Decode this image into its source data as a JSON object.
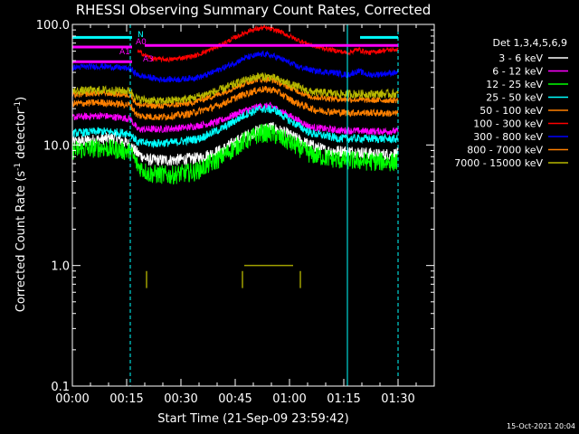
{
  "chart_data": {
    "type": "line",
    "title": "RHESSI Observing Summary Count Rates, Corrected",
    "xlabel": "Start Time (21-Sep-09 23:59:42)",
    "ylabel": "Corrected Count Rate (s⁻¹ detector⁻¹)",
    "ylabel_main": "Corrected Count Rate (s",
    "ylabel_sup1": "-1",
    "ylabel_mid": " detector",
    "ylabel_sup2": "-1",
    "ylabel_end": ")",
    "yscale": "log",
    "ylim": [
      0.1,
      100.0
    ],
    "xlim_minutes": [
      0,
      100
    ],
    "x_ticks": [
      {
        "value": 0,
        "label": "00:00"
      },
      {
        "value": 15,
        "label": "00:15"
      },
      {
        "value": 30,
        "label": "00:30"
      },
      {
        "value": 45,
        "label": "00:45"
      },
      {
        "value": 60,
        "label": "01:00"
      },
      {
        "value": 75,
        "label": "01:15"
      },
      {
        "value": 90,
        "label": "01:30"
      }
    ],
    "y_ticks": [
      {
        "value": 100.0,
        "label": "100.0"
      },
      {
        "value": 10.0,
        "label": "10.0"
      },
      {
        "value": 1.0,
        "label": "1.0"
      },
      {
        "value": 0.1,
        "label": "0.1"
      }
    ],
    "legend_title": "Det 1,3,4,5,6,9",
    "legend_position": "right",
    "series": [
      {
        "name": "3 - 6 keV",
        "color": "#ffffff",
        "noise": 0.05,
        "points": [
          [
            0,
            10.5
          ],
          [
            6,
            11
          ],
          [
            12,
            11.5
          ],
          [
            16,
            10
          ],
          [
            18,
            8.5
          ],
          [
            21,
            7.5
          ],
          [
            28,
            7.5
          ],
          [
            35,
            7.8
          ],
          [
            41,
            9
          ],
          [
            47,
            11.5
          ],
          [
            52,
            13.5
          ],
          [
            55,
            14
          ],
          [
            59,
            12.5
          ],
          [
            64,
            10.5
          ],
          [
            70,
            9
          ],
          [
            78,
            8.8
          ],
          [
            85,
            8.3
          ],
          [
            90,
            8.5
          ]
        ]
      },
      {
        "name": "6 - 12 keV",
        "color": "#ff00ff",
        "noise": 0.03,
        "points": [
          [
            0,
            17
          ],
          [
            8,
            17.5
          ],
          [
            16,
            16.5
          ],
          [
            18,
            13.5
          ],
          [
            24,
            13.5
          ],
          [
            32,
            14
          ],
          [
            40,
            15.5
          ],
          [
            47,
            19
          ],
          [
            52,
            21
          ],
          [
            55,
            21
          ],
          [
            60,
            17.5
          ],
          [
            66,
            14
          ],
          [
            74,
            13.2
          ],
          [
            82,
            13
          ],
          [
            90,
            13
          ]
        ]
      },
      {
        "name": "12 - 25 keV",
        "color": "#00ff00",
        "noise": 0.08,
        "points": [
          [
            0,
            9
          ],
          [
            8,
            9.5
          ],
          [
            16,
            8.8
          ],
          [
            18,
            6.8
          ],
          [
            21,
            5.8
          ],
          [
            27,
            5.6
          ],
          [
            34,
            6
          ],
          [
            40,
            7.5
          ],
          [
            47,
            10.5
          ],
          [
            52,
            12.5
          ],
          [
            55,
            12.5
          ],
          [
            60,
            10.5
          ],
          [
            66,
            8.3
          ],
          [
            74,
            7.5
          ],
          [
            82,
            7.3
          ],
          [
            90,
            7.2
          ]
        ]
      },
      {
        "name": "25 - 50 keV",
        "color": "#00ffff",
        "noise": 0.035,
        "points": [
          [
            0,
            12.5
          ],
          [
            8,
            13
          ],
          [
            16,
            12.5
          ],
          [
            18,
            10.5
          ],
          [
            22,
            10.3
          ],
          [
            28,
            10.5
          ],
          [
            35,
            11.3
          ],
          [
            42,
            14
          ],
          [
            48,
            18
          ],
          [
            52,
            20
          ],
          [
            56,
            19.5
          ],
          [
            60,
            16
          ],
          [
            66,
            12.5
          ],
          [
            74,
            11.3
          ],
          [
            82,
            11.3
          ],
          [
            90,
            11.2
          ]
        ]
      },
      {
        "name": "50 - 100 keV",
        "color": "#ff8000",
        "noise": 0.03,
        "points": [
          [
            0,
            22
          ],
          [
            8,
            22.5
          ],
          [
            16,
            21.5
          ],
          [
            18,
            17.5
          ],
          [
            24,
            17
          ],
          [
            32,
            18
          ],
          [
            40,
            21
          ],
          [
            47,
            26
          ],
          [
            52,
            29
          ],
          [
            56,
            28.5
          ],
          [
            61,
            23
          ],
          [
            67,
            19.5
          ],
          [
            75,
            18.5
          ],
          [
            82,
            18.5
          ],
          [
            90,
            18.2
          ]
        ]
      },
      {
        "name": "100 - 300 keV",
        "color": "#ff0000",
        "noise": 0.02,
        "points": [
          [
            18,
            60
          ],
          [
            22,
            52
          ],
          [
            27,
            51
          ],
          [
            34,
            55
          ],
          [
            40,
            65
          ],
          [
            45,
            78
          ],
          [
            49,
            89
          ],
          [
            53,
            94
          ],
          [
            57,
            88
          ],
          [
            62,
            75
          ],
          [
            66,
            67
          ],
          [
            71,
            62
          ],
          [
            76,
            58
          ],
          [
            79,
            62
          ],
          [
            82,
            58
          ],
          [
            86,
            61
          ],
          [
            90,
            62
          ]
        ]
      },
      {
        "name": "300 - 800 keV",
        "color": "#0000ff",
        "noise": 0.025,
        "points": [
          [
            0,
            44
          ],
          [
            8,
            45
          ],
          [
            16,
            43
          ],
          [
            18,
            38
          ],
          [
            24,
            35
          ],
          [
            30,
            35
          ],
          [
            36,
            37
          ],
          [
            42,
            44
          ],
          [
            48,
            53
          ],
          [
            53,
            57
          ],
          [
            57,
            53
          ],
          [
            62,
            45
          ],
          [
            67,
            41
          ],
          [
            72,
            40
          ],
          [
            76,
            38
          ],
          [
            79,
            41
          ],
          [
            82,
            38
          ],
          [
            86,
            39
          ],
          [
            90,
            40
          ]
        ]
      },
      {
        "name": "800 - 7000 keV",
        "color": "#ff8000",
        "noise": 0.025,
        "points": [
          [
            0,
            26
          ],
          [
            8,
            27
          ],
          [
            16,
            26
          ],
          [
            18,
            21.5
          ],
          [
            24,
            21
          ],
          [
            32,
            22
          ],
          [
            40,
            26
          ],
          [
            46,
            31
          ],
          [
            51,
            35
          ],
          [
            55,
            35
          ],
          [
            60,
            30
          ],
          [
            66,
            25
          ],
          [
            74,
            24
          ],
          [
            82,
            23.5
          ],
          [
            90,
            23.5
          ]
        ]
      },
      {
        "name": "7000 - 15000 keV",
        "color": "#b8b800",
        "noise": 0.035,
        "points": [
          [
            0,
            28
          ],
          [
            8,
            28.5
          ],
          [
            16,
            28
          ],
          [
            18,
            24
          ],
          [
            24,
            23
          ],
          [
            32,
            24
          ],
          [
            40,
            28
          ],
          [
            46,
            33
          ],
          [
            51,
            37
          ],
          [
            55,
            36.5
          ],
          [
            60,
            32
          ],
          [
            66,
            27.5
          ],
          [
            74,
            26.5
          ],
          [
            82,
            26.5
          ],
          [
            90,
            26.5
          ]
        ]
      }
    ],
    "annotations": [
      {
        "text": "N",
        "color": "#00ffff"
      },
      {
        "text": "A0",
        "color": "#ff00ff"
      },
      {
        "text": "A1",
        "color": "#ff00ff"
      },
      {
        "text": "A3",
        "color": "#ff00ff"
      }
    ],
    "state_bars": [
      {
        "color": "#00ffff",
        "x0": 0,
        "x1": 16.5,
        "y": 78
      },
      {
        "color": "#00ffff",
        "x0": 79.5,
        "x1": 90,
        "y": 78
      },
      {
        "color": "#ff00ff",
        "x0": 0,
        "x1": 16.5,
        "y": 65
      },
      {
        "color": "#ff00ff",
        "x0": 20,
        "x1": 90,
        "y": 67
      },
      {
        "color": "#ff00ff",
        "x0": 0,
        "x1": 16.5,
        "y": 49
      }
    ],
    "boundaries": [
      {
        "x": 0,
        "style": "solid",
        "color": "#00ffff"
      },
      {
        "x": 16,
        "style": "dashed",
        "color": "#00ffff"
      },
      {
        "x": 76,
        "style": "solid",
        "color": "#00ffff"
      },
      {
        "x": 90,
        "style": "dashed",
        "color": "#00ffff"
      }
    ],
    "low_counts": [
      {
        "x0": 20.5,
        "x1": 20.5,
        "y0": 0.65,
        "y1": 0.9
      },
      {
        "x0": 47,
        "x1": 47,
        "y0": 0.65,
        "y1": 0.9
      },
      {
        "x0": 63,
        "x1": 63,
        "y0": 0.65,
        "y1": 0.9
      },
      {
        "x0": 47.5,
        "x1": 61,
        "y0": 1.0,
        "y1": 1.0
      }
    ]
  },
  "footer_date": "15-Oct-2021 20:04"
}
